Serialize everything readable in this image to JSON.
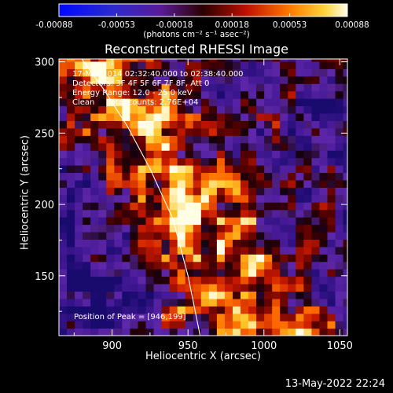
{
  "chart_data": {
    "type": "heatmap",
    "title": "Reconstructed RHESSI Image",
    "xlabel": "Heliocentric X (arcsec)",
    "ylabel": "Heliocentric Y (arcsec)",
    "xlim": [
      865,
      1055
    ],
    "ylim": [
      108,
      302
    ],
    "x_ticks": [
      900,
      950,
      1000,
      1050
    ],
    "y_ticks": [
      150,
      200,
      250,
      300
    ],
    "colorbar": {
      "min": -0.00088,
      "max": 0.00088,
      "ticks": [
        "-0.00088",
        "-0.00053",
        "-0.00018",
        "0.00018",
        "0.00053",
        "0.00088"
      ],
      "label": "(photons cm⁻² s⁻¹ asec⁻²)"
    },
    "annotations": [
      "17-Mar-2014 02:32:40.000 to 02:38:40.000",
      "Detectors: 3F 4F 5F 6F 7F 8F, Att 0",
      "Energy Range: 12.0 - 25.0 keV",
      "Clean     Total counts: 2.76E+04"
    ],
    "peak_text": "Position of Peak = [946,199]",
    "peak_position": [
      946,
      199
    ],
    "limb_curve": [
      [
        880,
        302
      ],
      [
        895,
        280
      ],
      [
        910,
        255
      ],
      [
        925,
        225
      ],
      [
        940,
        190
      ],
      [
        950,
        150
      ],
      [
        958,
        108
      ]
    ]
  },
  "footer": "13-May-2022 22:24",
  "colors": {
    "background": "#000000",
    "text": "#ffffff"
  }
}
